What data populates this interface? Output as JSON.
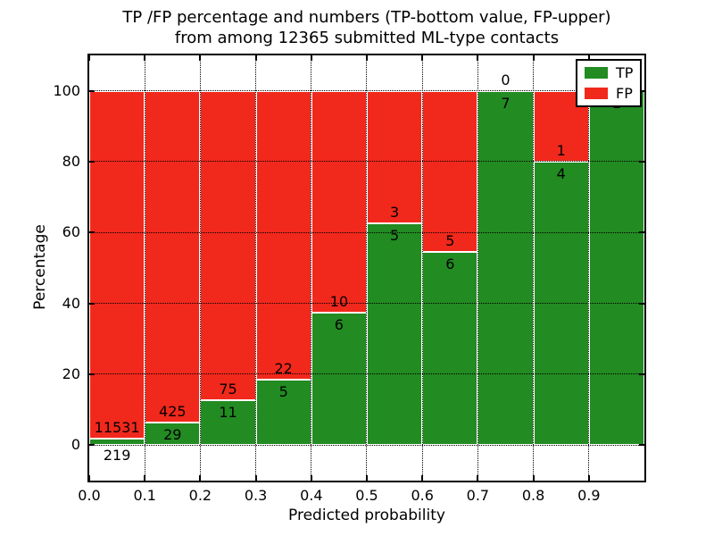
{
  "figure": {
    "title_line1": "TP /FP percentage and numbers (TP-bottom value, FP-upper)",
    "title_line2": "from among 12365 submitted ML-type contacts"
  },
  "chart_data": {
    "type": "bar",
    "subtype": "stacked-percentage",
    "title": "TP /FP percentage and numbers (TP-bottom value, FP-upper) from among 12365 submitted ML-type contacts",
    "xlabel": "Predicted probability",
    "ylabel": "Percentage",
    "xlim": [
      0.0,
      1.0
    ],
    "ylim": [
      -10,
      110
    ],
    "bin_width": 0.1,
    "grid": "dotted",
    "legend_position": "upper-right",
    "categories": [
      "0.0-0.1",
      "0.1-0.2",
      "0.2-0.3",
      "0.3-0.4",
      "0.4-0.5",
      "0.5-0.6",
      "0.6-0.7",
      "0.7-0.8",
      "0.8-0.9",
      "0.9-1.0"
    ],
    "series": [
      {
        "name": "TP",
        "color": "#228b22",
        "values": [
          219,
          29,
          11,
          5,
          6,
          5,
          6,
          7,
          4,
          1
        ]
      },
      {
        "name": "FP",
        "color": "#f1281c",
        "values": [
          11531,
          425,
          75,
          22,
          10,
          3,
          5,
          0,
          1,
          0
        ]
      }
    ],
    "x_ticks": [
      "0.0",
      "0.1",
      "0.2",
      "0.3",
      "0.4",
      "0.5",
      "0.6",
      "0.7",
      "0.8",
      "0.9"
    ],
    "y_ticks": [
      "0",
      "20",
      "40",
      "60",
      "80",
      "100"
    ],
    "colors": {
      "tp": "#228b22",
      "fp": "#f1281c",
      "grid": "#000000",
      "bar_edge": "#ffffff",
      "text": "#000000",
      "background": "#ffffff",
      "legend_border": "#000000"
    }
  }
}
